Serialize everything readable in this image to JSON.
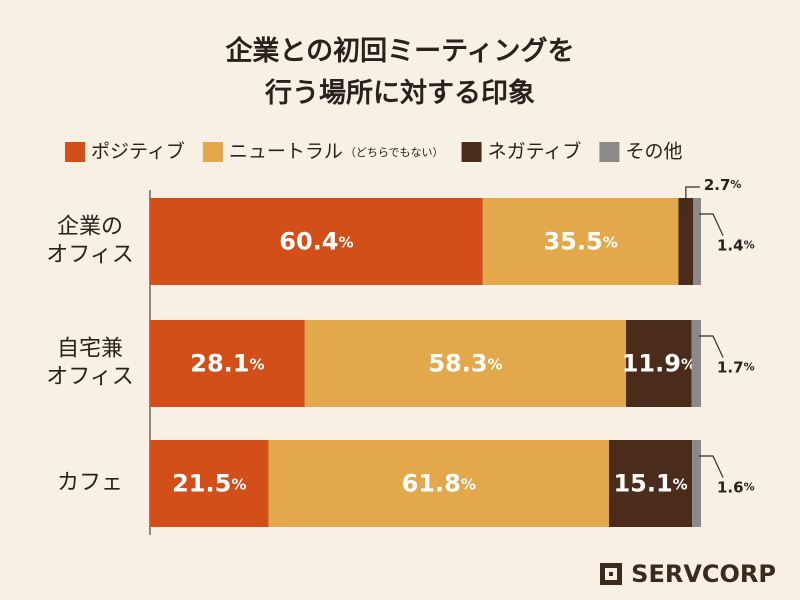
{
  "chart_data": {
    "type": "stacked-bar-horizontal",
    "title": "企業との初回ミーティングを\n行う場所に対する印象",
    "categories": [
      "企業の\nオフィス",
      "自宅兼\nオフィス",
      "カフェ"
    ],
    "xlim": [
      0,
      100
    ],
    "series": [
      {
        "name": "ポジティブ",
        "color": "#d24f1a",
        "values": [
          60.4,
          28.1,
          21.5
        ],
        "value_labels": [
          "60.4%",
          "28.1%",
          "21.5%"
        ]
      },
      {
        "name": "ニュートラル",
        "note": "（どちらでもない）",
        "color": "#e3a84b",
        "values": [
          35.5,
          58.3,
          61.8
        ],
        "value_labels": [
          "35.5%",
          "58.3%",
          "61.8%"
        ]
      },
      {
        "name": "ネガティブ",
        "color": "#4b2b1a",
        "values": [
          2.7,
          11.9,
          15.1
        ],
        "value_labels": [
          "2.7%",
          "11.9%",
          "15.1%"
        ]
      },
      {
        "name": "その他",
        "color": "#8c8a88",
        "values": [
          1.4,
          1.7,
          1.6
        ],
        "value_labels": [
          "1.4%",
          "1.7%",
          "1.6%"
        ]
      }
    ],
    "logo": "SERVCORP"
  }
}
